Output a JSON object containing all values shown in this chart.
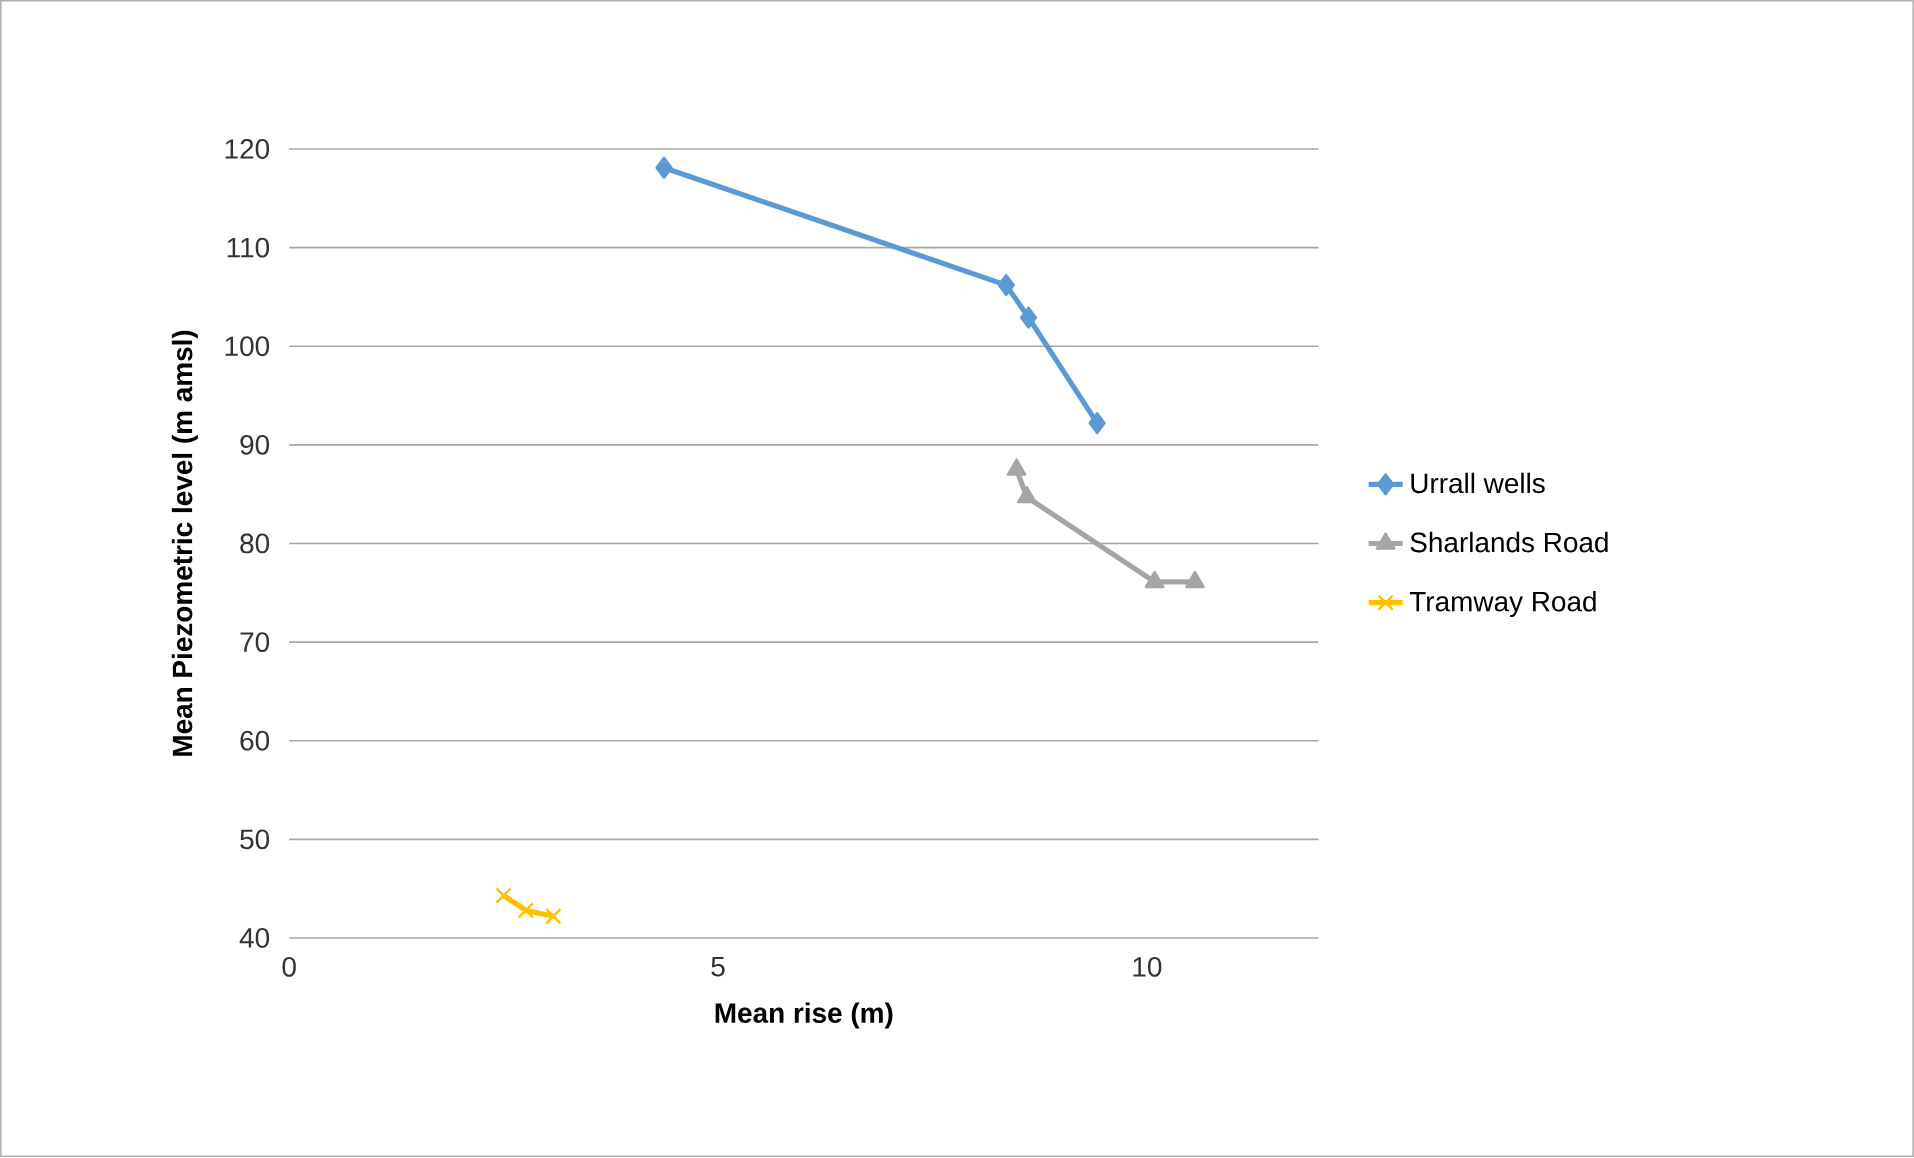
{
  "chart_data": {
    "type": "line",
    "xlabel": "Mean rise (m)",
    "ylabel": "Mean Piezometric level (m amsl)",
    "xlim": [
      0,
      12
    ],
    "xticks": [
      0,
      5,
      10
    ],
    "ylim": [
      40,
      120
    ],
    "yticks": [
      40,
      50,
      60,
      70,
      80,
      90,
      100,
      110,
      120
    ],
    "grid": "y",
    "legend": "right",
    "line_style": "solid",
    "series": [
      {
        "name": "Urrall wells",
        "color": "#5b9bd5",
        "marker": "diamond",
        "x": [
          4.37,
          8.36,
          8.62,
          9.42
        ],
        "values": [
          118.1,
          106.2,
          102.9,
          92.2
        ]
      },
      {
        "name": "Sharlands Road",
        "color": "#a5a5a5",
        "marker": "triangle",
        "x": [
          8.48,
          8.6,
          10.09,
          10.56
        ],
        "values": [
          87.5,
          84.7,
          76.1,
          76.1
        ]
      },
      {
        "name": "Tramway Road",
        "color": "#ffc000",
        "marker": "cross",
        "x": [
          2.5,
          2.76,
          3.08
        ],
        "values": [
          44.3,
          42.8,
          42.2
        ]
      }
    ]
  }
}
